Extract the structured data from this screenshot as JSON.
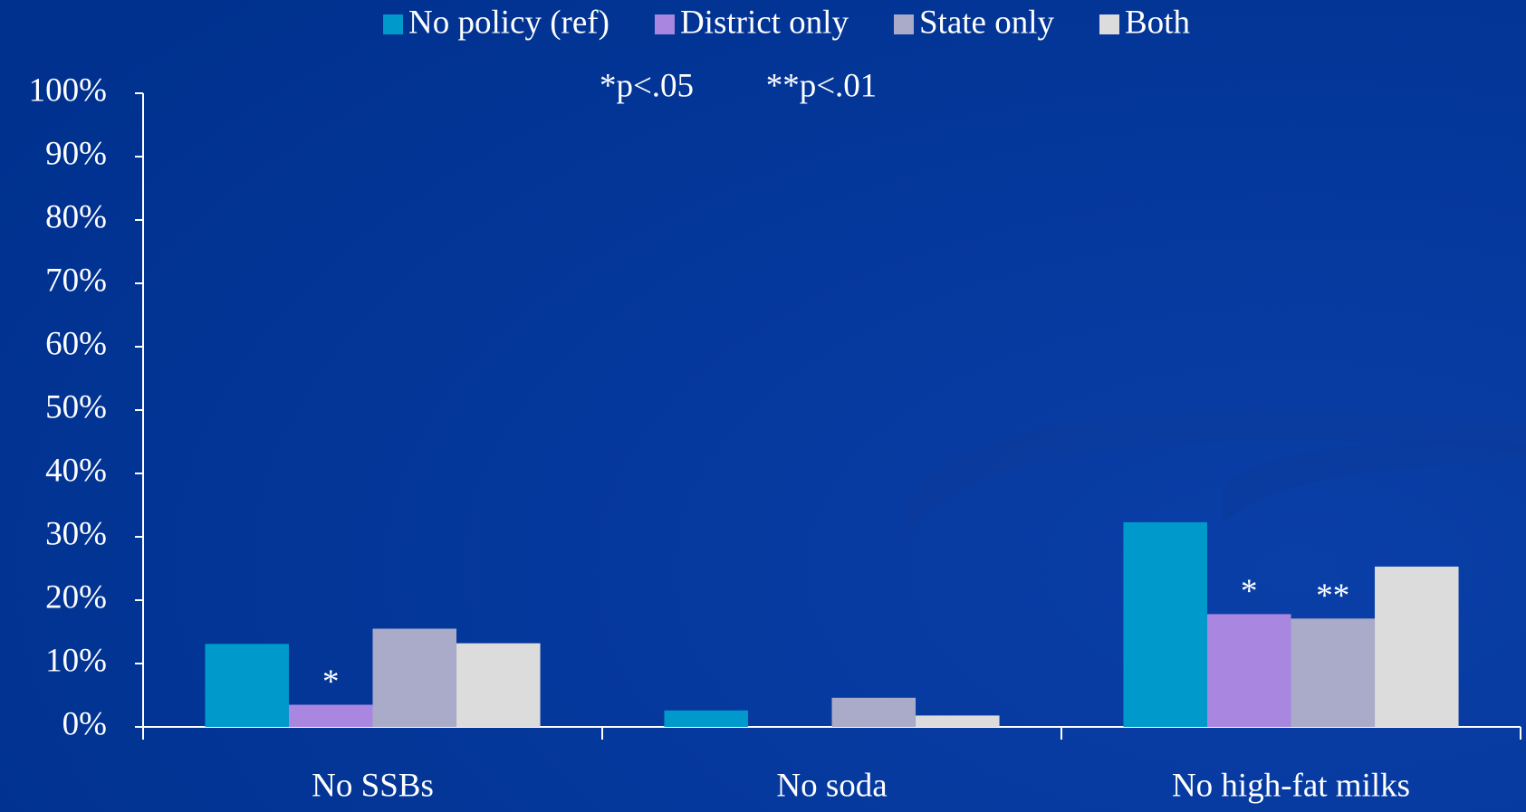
{
  "chart_data": {
    "type": "bar",
    "categories": [
      "No SSBs",
      "No soda",
      "No high-fat milks"
    ],
    "series": [
      {
        "name": "No policy (ref)",
        "color": "#0099cc",
        "values": [
          13.1,
          2.6,
          32.3
        ]
      },
      {
        "name": "District only",
        "color": "#a987e0",
        "values": [
          3.5,
          0,
          17.8
        ],
        "significance": [
          "*",
          null,
          "*"
        ]
      },
      {
        "name": "State only",
        "color": "#a9abc8",
        "values": [
          15.5,
          4.6,
          17.1
        ],
        "significance": [
          null,
          null,
          "**"
        ]
      },
      {
        "name": "Both",
        "color": "#dcdcdc",
        "values": [
          13.2,
          1.8,
          25.3
        ]
      }
    ],
    "notes": [
      "*p<.05",
      "**p<.01"
    ],
    "ylim": [
      0,
      100
    ],
    "yticks": [
      {
        "value": 0,
        "label": "0%"
      },
      {
        "value": 10,
        "label": "10%"
      },
      {
        "value": 20,
        "label": "20%"
      },
      {
        "value": 30,
        "label": "30%"
      },
      {
        "value": 40,
        "label": "40%"
      },
      {
        "value": 50,
        "label": "50%"
      },
      {
        "value": 60,
        "label": "60%"
      },
      {
        "value": 70,
        "label": "70%"
      },
      {
        "value": 80,
        "label": "80%"
      },
      {
        "value": 90,
        "label": "90%"
      },
      {
        "value": 100,
        "label": "100%"
      }
    ],
    "legend": "top"
  }
}
